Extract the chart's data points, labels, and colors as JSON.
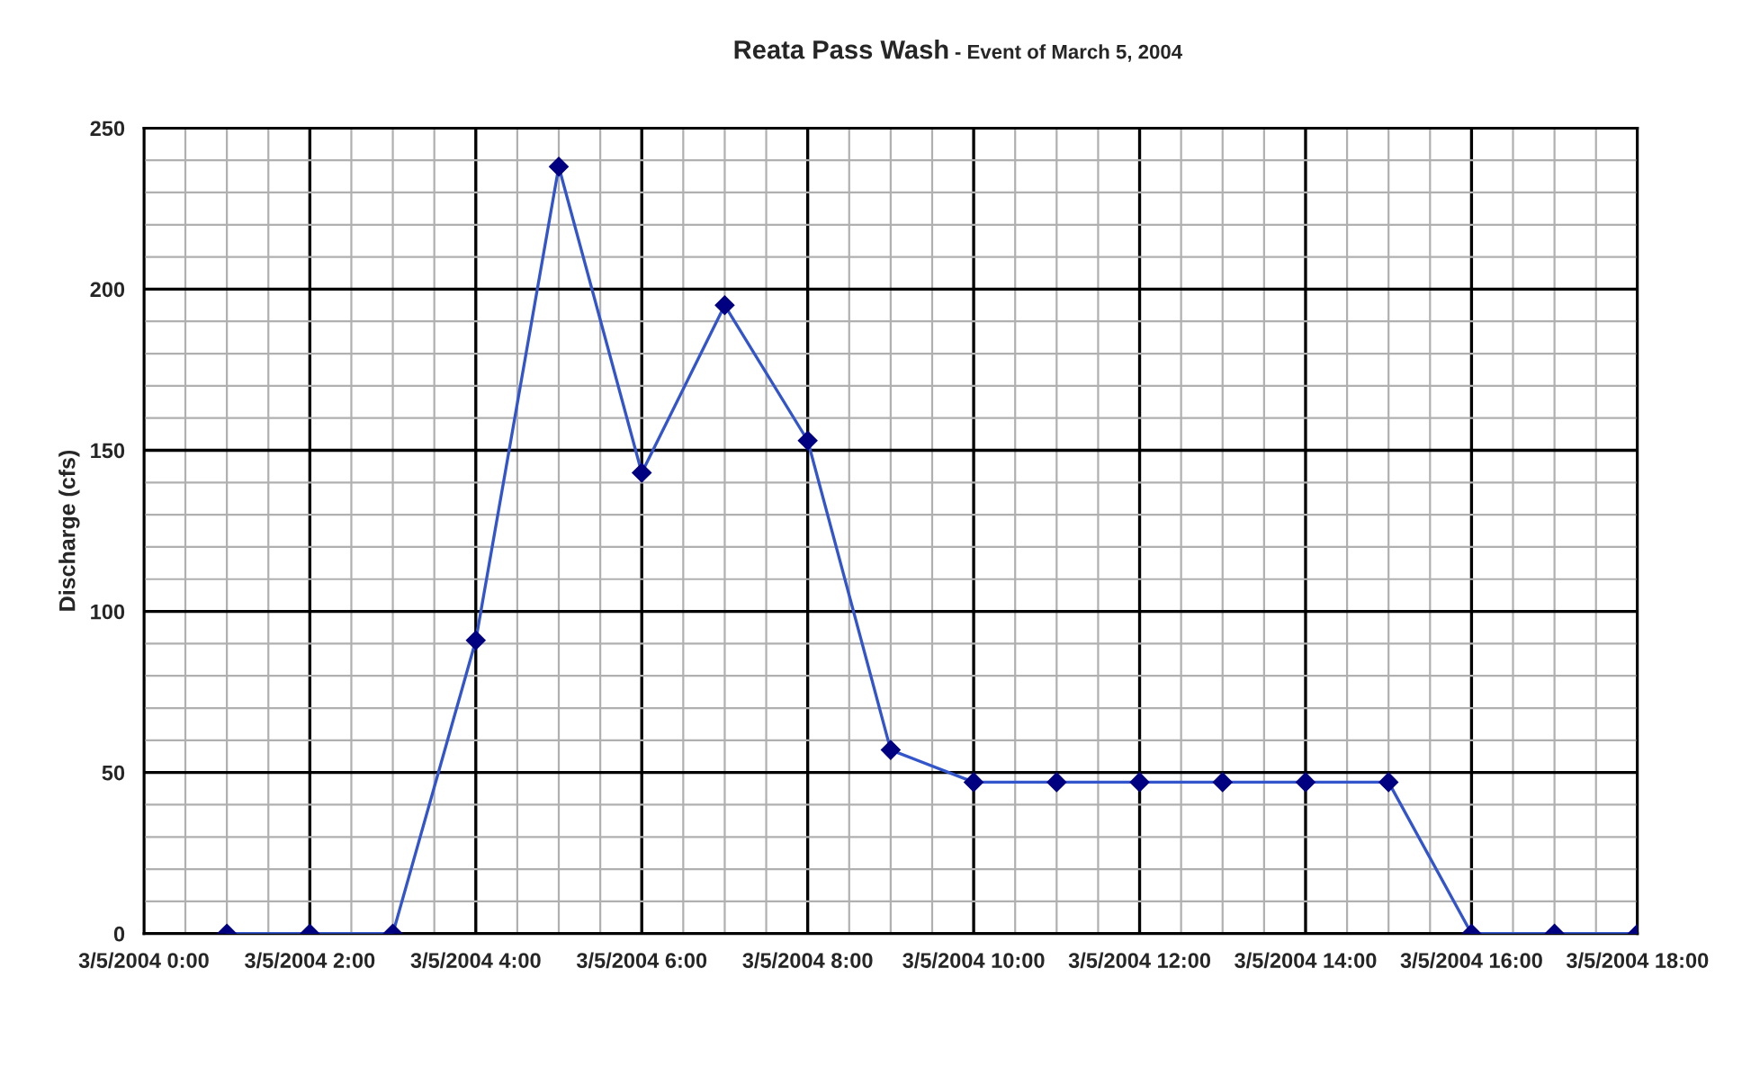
{
  "chart_data": {
    "type": "line",
    "title": "Reata Pass Wash",
    "subtitle": "- Event of March 5, 2004",
    "ylabel": "Discharge (cfs)",
    "x": [
      "2004-03-05T01:00",
      "2004-03-05T02:00",
      "2004-03-05T03:00",
      "2004-03-05T04:00",
      "2004-03-05T05:00",
      "2004-03-05T06:00",
      "2004-03-05T07:00",
      "2004-03-05T08:00",
      "2004-03-05T09:00",
      "2004-03-05T10:00",
      "2004-03-05T11:00",
      "2004-03-05T12:00",
      "2004-03-05T13:00",
      "2004-03-05T14:00",
      "2004-03-05T15:00",
      "2004-03-05T16:00",
      "2004-03-05T17:00",
      "2004-03-05T18:00"
    ],
    "series": [
      {
        "color": "#3355cc",
        "values": [
          0,
          0,
          0,
          91,
          238,
          143,
          195,
          153,
          57,
          47,
          47,
          47,
          47,
          47,
          47,
          0,
          0,
          0
        ]
      }
    ],
    "xlim": [
      "2004-03-05T00:00",
      "2004-03-05T18:00"
    ],
    "xticks": [
      {
        "value": "2004-03-05T00:00",
        "label": "3/5/2004 0:00"
      },
      {
        "value": "2004-03-05T02:00",
        "label": "3/5/2004 2:00"
      },
      {
        "value": "2004-03-05T04:00",
        "label": "3/5/2004 4:00"
      },
      {
        "value": "2004-03-05T06:00",
        "label": "3/5/2004 6:00"
      },
      {
        "value": "2004-03-05T08:00",
        "label": "3/5/2004 8:00"
      },
      {
        "value": "2004-03-05T10:00",
        "label": "3/5/2004 10:00"
      },
      {
        "value": "2004-03-05T12:00",
        "label": "3/5/2004 12:00"
      },
      {
        "value": "2004-03-05T14:00",
        "label": "3/5/2004 14:00"
      },
      {
        "value": "2004-03-05T16:00",
        "label": "3/5/2004 16:00"
      },
      {
        "value": "2004-03-05T18:00",
        "label": "3/5/2004 18:00"
      }
    ],
    "ylim": [
      0,
      250
    ],
    "yticks": [
      0,
      50,
      100,
      150,
      200,
      250
    ],
    "grid": true,
    "marker": "diamond",
    "line_style": "solid"
  }
}
